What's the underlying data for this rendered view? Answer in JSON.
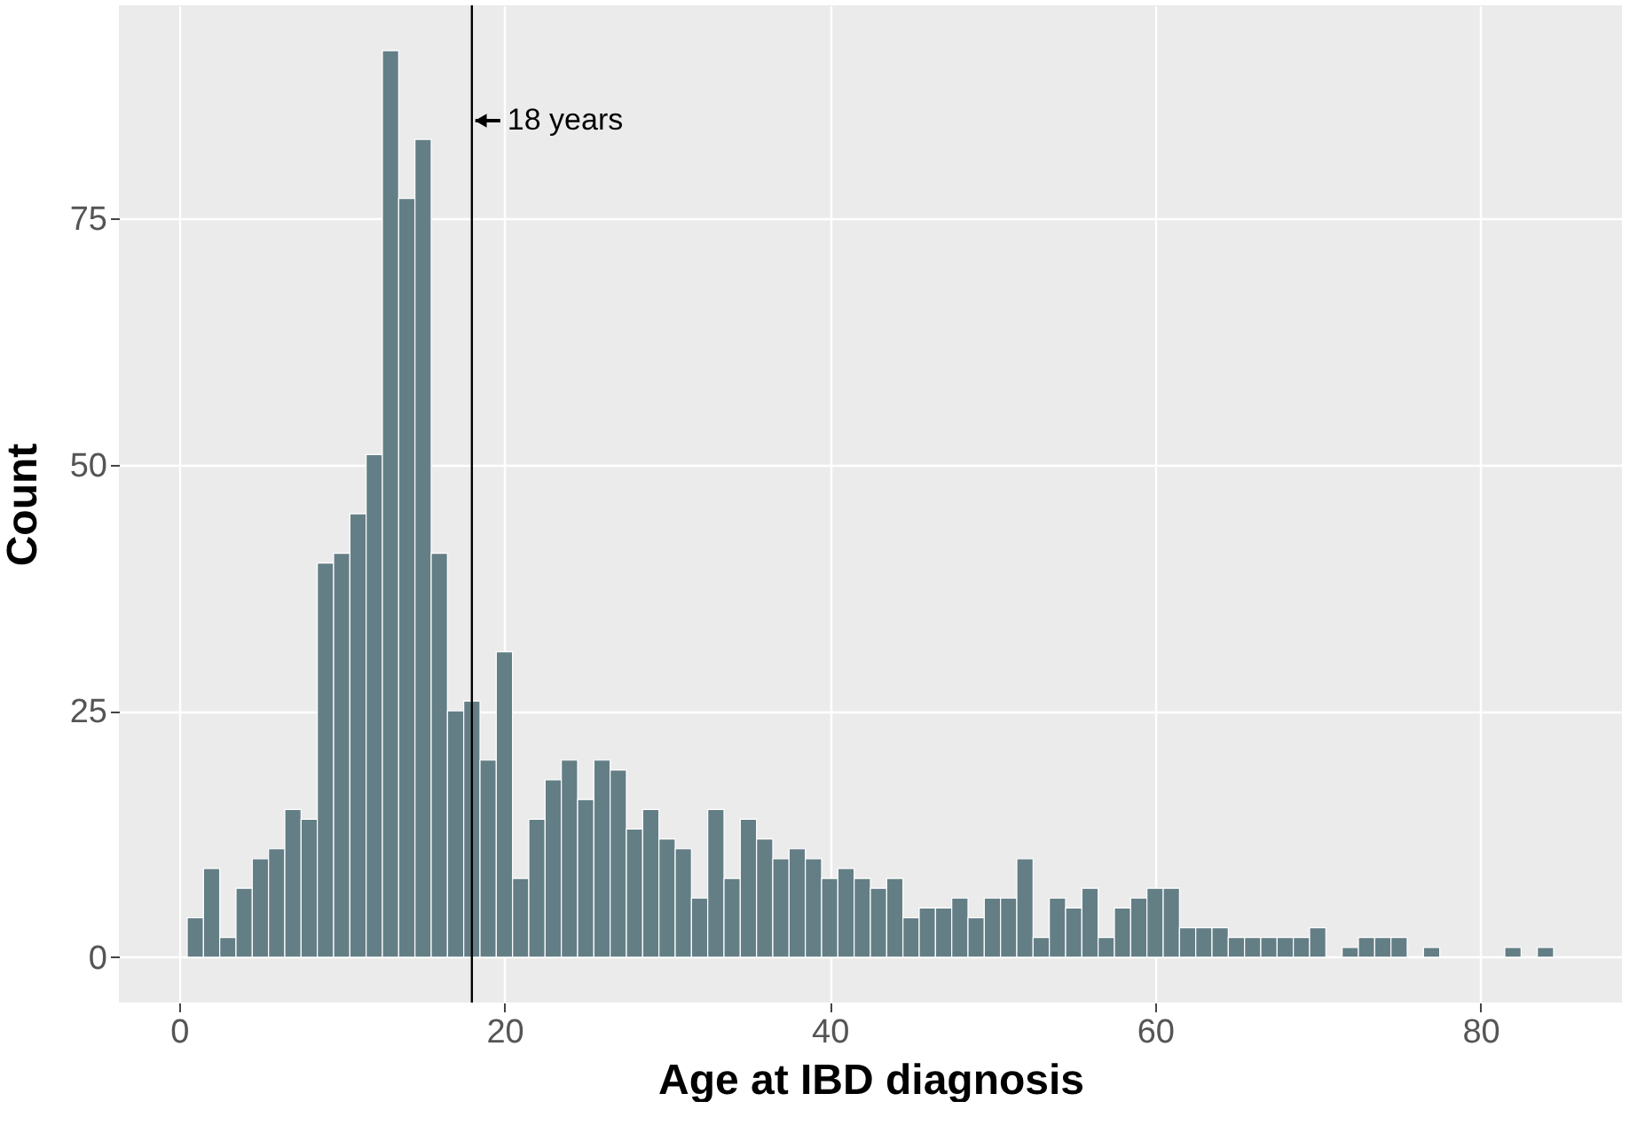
{
  "chart_data": {
    "type": "histogram",
    "xlabel": "Age at IBD diagnosis",
    "ylabel": "Count",
    "color": "#647e86",
    "bins": [
      0.5,
      1.5,
      2.5,
      3.5,
      4.5,
      5.5,
      6.5,
      7.5,
      8.5,
      9.5,
      10.5,
      11.5,
      12.5,
      13.5,
      14.5,
      15.5,
      16.5,
      17.5,
      18.5,
      19.5,
      20.5,
      21.5,
      22.5,
      23.5,
      24.5,
      25.5,
      26.5,
      27.5,
      28.5,
      29.5,
      30.5,
      31.5,
      32.5,
      33.5,
      34.5,
      35.5,
      36.5,
      37.5,
      38.5,
      39.5,
      40.5,
      41.5,
      42.5,
      43.5,
      44.5,
      45.5,
      46.5,
      47.5,
      48.5,
      49.5,
      50.5,
      51.5,
      52.5,
      53.5,
      54.5,
      55.5,
      56.5,
      57.5,
      58.5,
      59.5,
      60.5,
      61.5,
      62.5,
      63.5,
      64.5,
      65.5,
      66.5,
      67.5,
      68.5,
      69.5,
      70.5,
      71.5,
      72.5,
      73.5,
      74.5,
      75.5,
      76.5,
      77.5,
      78.5,
      79.5,
      80.5,
      81.5,
      82.5,
      83.5,
      84.5
    ],
    "values": [
      4,
      9,
      2,
      7,
      10,
      11,
      15,
      14,
      40,
      41,
      45,
      51,
      92,
      77,
      83,
      41,
      25,
      26,
      20,
      31,
      8,
      14,
      18,
      20,
      16,
      20,
      19,
      13,
      15,
      12,
      11,
      6,
      15,
      8,
      14,
      12,
      10,
      11,
      10,
      8,
      9,
      8,
      7,
      8,
      4,
      5,
      5,
      6,
      4,
      6,
      6,
      10,
      2,
      6,
      5,
      7,
      2,
      5,
      6,
      7,
      7,
      3,
      3,
      3,
      2,
      2,
      2,
      2,
      2,
      3,
      0,
      1,
      2,
      2,
      2,
      0,
      1,
      0,
      0,
      0,
      0,
      1,
      0,
      1
    ],
    "xlim": [
      -3.7,
      88.7
    ],
    "xticks": [
      0,
      20,
      40,
      60,
      80
    ],
    "ylim": [
      -4.6,
      96.6
    ],
    "yticks": [
      0,
      25,
      50,
      75
    ],
    "grid": true,
    "ref_lines": [
      {
        "axis": "x",
        "value": 18,
        "color": "#000000",
        "label": "18 years"
      }
    ]
  }
}
